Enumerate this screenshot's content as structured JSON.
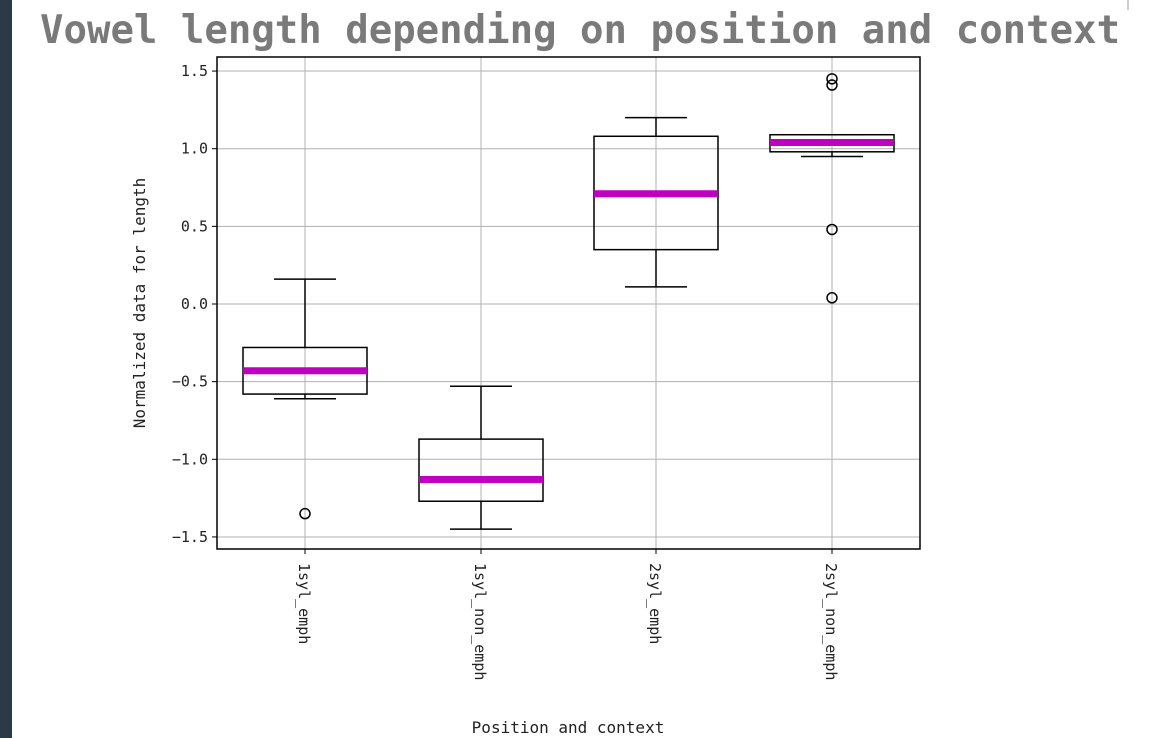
{
  "chart_data": {
    "type": "boxplot",
    "title": "Vowel length depending on position and context",
    "xlabel": "Position and context",
    "ylabel": "Normalized data for length",
    "categories": [
      "1syl_emph",
      "1syl_non_emph",
      "2syl_emph",
      "2syl_non_emph"
    ],
    "ylim": [
      -1.6,
      1.6
    ],
    "yticks": [
      1.5,
      1.0,
      0.5,
      0.0,
      -0.5,
      -1.0,
      -1.5
    ],
    "ytick_labels": [
      "1.5",
      "1.0",
      "0.5",
      "0.0",
      "−0.5",
      "−1.0",
      "−1.5"
    ],
    "grid": true,
    "median_color": "#c000c0",
    "box_color": "#000000",
    "boxes": [
      {
        "category": "1syl_emph",
        "whislo": -0.61,
        "q1": -0.58,
        "med": -0.43,
        "q3": -0.28,
        "whishi": 0.16,
        "fliers": [
          -1.35
        ]
      },
      {
        "category": "1syl_non_emph",
        "whislo": -1.45,
        "q1": -1.27,
        "med": -1.13,
        "q3": -0.87,
        "whishi": -0.53,
        "fliers": []
      },
      {
        "category": "2syl_emph",
        "whislo": 0.11,
        "q1": 0.35,
        "med": 0.71,
        "q3": 1.08,
        "whishi": 1.2,
        "fliers": []
      },
      {
        "category": "2syl_non_emph",
        "whislo": 0.95,
        "q1": 0.98,
        "med": 1.04,
        "q3": 1.09,
        "whishi": 1.09,
        "fliers": [
          1.45,
          1.41,
          0.48,
          0.04
        ]
      }
    ]
  }
}
